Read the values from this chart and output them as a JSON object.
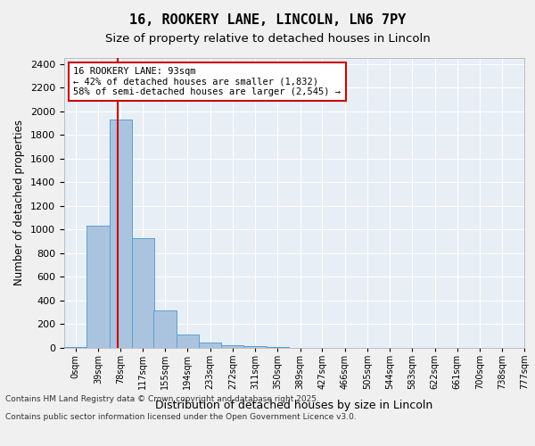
{
  "title1": "16, ROOKERY LANE, LINCOLN, LN6 7PY",
  "title2": "Size of property relative to detached houses in Lincoln",
  "xlabel": "Distribution of detached houses by size in Lincoln",
  "ylabel": "Number of detached properties",
  "bin_labels": [
    "0sqm",
    "39sqm",
    "78sqm",
    "117sqm",
    "155sqm",
    "194sqm",
    "233sqm",
    "272sqm",
    "311sqm",
    "350sqm",
    "389sqm",
    "427sqm",
    "466sqm",
    "505sqm",
    "544sqm",
    "583sqm",
    "622sqm",
    "661sqm",
    "700sqm",
    "738sqm",
    "777sqm"
  ],
  "bin_edges": [
    0,
    39,
    78,
    117,
    155,
    194,
    233,
    272,
    311,
    350,
    389,
    427,
    466,
    505,
    544,
    583,
    622,
    661,
    700,
    738,
    777
  ],
  "bar_heights": [
    10,
    1030,
    1930,
    930,
    320,
    110,
    45,
    25,
    15,
    10,
    0,
    0,
    0,
    0,
    0,
    0,
    0,
    0,
    0,
    0
  ],
  "bar_color": "#aac4e0",
  "bar_edgecolor": "#5a9fd4",
  "property_size": 93,
  "vline_color": "#cc0000",
  "annotation_title": "16 ROOKERY LANE: 93sqm",
  "annotation_line1": "← 42% of detached houses are smaller (1,832)",
  "annotation_line2": "58% of semi-detached houses are larger (2,545) →",
  "annotation_box_edgecolor": "#cc0000",
  "annotation_box_facecolor": "#ffffff",
  "ylim": [
    0,
    2450
  ],
  "yticks": [
    0,
    200,
    400,
    600,
    800,
    1000,
    1200,
    1400,
    1600,
    1800,
    2000,
    2200,
    2400
  ],
  "background_color": "#e8eef5",
  "footer_line1": "Contains HM Land Registry data © Crown copyright and database right 2025.",
  "footer_line2": "Contains public sector information licensed under the Open Government Licence v3.0.",
  "bin_width": 39
}
